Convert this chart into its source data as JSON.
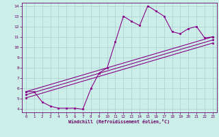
{
  "xlabel": "Windchill (Refroidissement éolien,°C)",
  "bg_color": "#cceee8",
  "grid_color": "#aacccc",
  "line_color": "#880088",
  "spine_color": "#660066",
  "xlim": [
    -0.5,
    23.5
  ],
  "ylim": [
    3.7,
    14.3
  ],
  "xticks": [
    0,
    1,
    2,
    3,
    4,
    5,
    6,
    7,
    8,
    9,
    10,
    11,
    12,
    13,
    14,
    15,
    16,
    17,
    18,
    19,
    20,
    21,
    22,
    23
  ],
  "yticks": [
    4,
    5,
    6,
    7,
    8,
    9,
    10,
    11,
    12,
    13,
    14
  ],
  "series1_x": [
    0,
    1,
    2,
    3,
    4,
    5,
    6,
    7,
    8,
    9,
    10,
    11,
    12,
    13,
    14,
    15,
    16,
    17,
    18,
    19,
    20,
    21,
    22,
    23
  ],
  "series1_y": [
    5.7,
    5.7,
    4.7,
    4.3,
    4.1,
    4.1,
    4.1,
    4.0,
    6.0,
    7.5,
    8.0,
    10.5,
    13.0,
    12.5,
    12.1,
    14.0,
    13.5,
    13.0,
    11.5,
    11.3,
    11.8,
    12.0,
    10.9,
    11.0
  ],
  "series2_x": [
    0,
    23
  ],
  "series2_y": [
    5.7,
    11.0
  ],
  "series3_x": [
    0,
    23
  ],
  "series3_y": [
    5.4,
    10.7
  ],
  "series4_x": [
    0,
    23
  ],
  "series4_y": [
    5.1,
    10.4
  ]
}
